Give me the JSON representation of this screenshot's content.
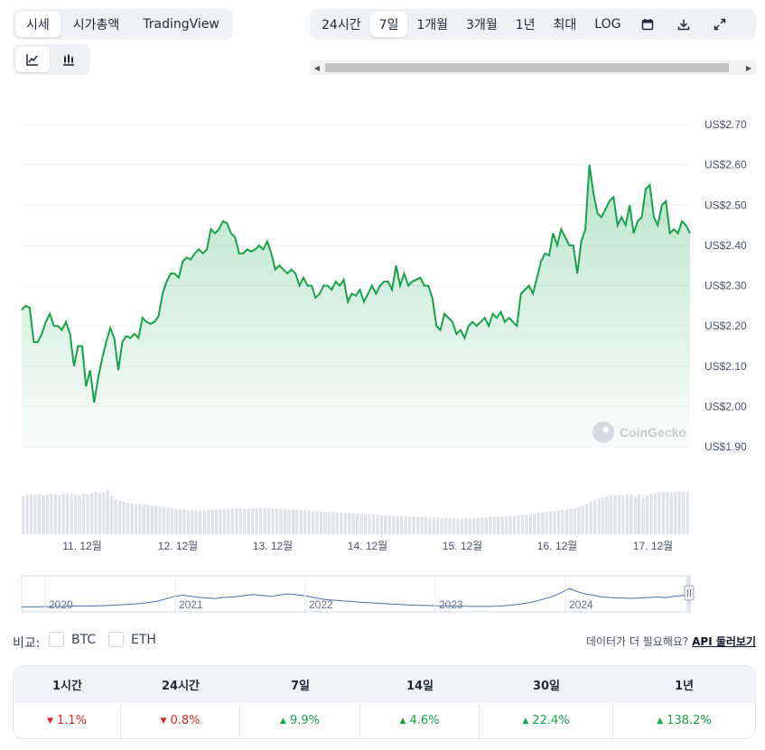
{
  "tabs": {
    "view": [
      "시세",
      "시가총액",
      "TradingView"
    ],
    "view_active": 0,
    "range": [
      "24시간",
      "7일",
      "1개월",
      "3개월",
      "1년",
      "최대",
      "LOG"
    ],
    "range_active": 1,
    "chart_type_icons": [
      "line-chart-icon",
      "candlestick-chart-icon"
    ],
    "chart_type_active": 0,
    "range_icons": [
      "calendar-icon",
      "download-icon",
      "expand-icon"
    ]
  },
  "watermark": "CoinGecko",
  "chart_data": {
    "type": "area",
    "ylim": [
      1.9,
      2.7
    ],
    "y_ticks": [
      "US$2.70",
      "US$2.60",
      "US$2.50",
      "US$2.40",
      "US$2.30",
      "US$2.20",
      "US$2.10",
      "US$2.00",
      "US$1.90"
    ],
    "x_ticks": [
      "11. 12월",
      "12. 12월",
      "13. 12월",
      "14. 12월",
      "15. 12월",
      "16. 12월",
      "17. 12월"
    ],
    "line_color": "#16a34a",
    "price": [
      2.24,
      2.25,
      2.245,
      2.16,
      2.16,
      2.18,
      2.21,
      2.23,
      2.2,
      2.2,
      2.19,
      2.21,
      2.18,
      2.1,
      2.15,
      2.15,
      2.05,
      2.09,
      2.01,
      2.07,
      2.12,
      2.16,
      2.195,
      2.17,
      2.09,
      2.16,
      2.175,
      2.17,
      2.18,
      2.17,
      2.22,
      2.21,
      2.205,
      2.21,
      2.225,
      2.28,
      2.31,
      2.33,
      2.33,
      2.32,
      2.36,
      2.37,
      2.365,
      2.38,
      2.39,
      2.38,
      2.39,
      2.44,
      2.43,
      2.44,
      2.46,
      2.455,
      2.43,
      2.42,
      2.38,
      2.38,
      2.39,
      2.385,
      2.39,
      2.4,
      2.39,
      2.41,
      2.38,
      2.34,
      2.35,
      2.34,
      2.33,
      2.34,
      2.33,
      2.3,
      2.32,
      2.3,
      2.3,
      2.27,
      2.28,
      2.3,
      2.3,
      2.29,
      2.31,
      2.3,
      2.315,
      2.26,
      2.28,
      2.275,
      2.29,
      2.26,
      2.28,
      2.3,
      2.28,
      2.3,
      2.31,
      2.31,
      2.29,
      2.35,
      2.3,
      2.33,
      2.3,
      2.31,
      2.315,
      2.32,
      2.3,
      2.3,
      2.27,
      2.2,
      2.19,
      2.23,
      2.22,
      2.21,
      2.18,
      2.19,
      2.17,
      2.2,
      2.21,
      2.2,
      2.21,
      2.22,
      2.2,
      2.23,
      2.22,
      2.235,
      2.21,
      2.22,
      2.21,
      2.2,
      2.28,
      2.29,
      2.3,
      2.28,
      2.32,
      2.36,
      2.38,
      2.375,
      2.43,
      2.4,
      2.44,
      2.42,
      2.4,
      2.4,
      2.33,
      2.41,
      2.44,
      2.6,
      2.53,
      2.48,
      2.47,
      2.49,
      2.51,
      2.52,
      2.45,
      2.47,
      2.45,
      2.5,
      2.43,
      2.46,
      2.47,
      2.54,
      2.55,
      2.47,
      2.45,
      2.5,
      2.51,
      2.43,
      2.44,
      2.43,
      2.46,
      2.45,
      2.43
    ],
    "volume": [
      0.7,
      0.72,
      0.74,
      0.73,
      0.74,
      0.73,
      0.74,
      0.76,
      0.74,
      0.73,
      0.74,
      0.75,
      0.76,
      0.74,
      0.73,
      0.75,
      0.74,
      0.76,
      0.78,
      0.76,
      0.77,
      0.82,
      0.72,
      0.65,
      0.62,
      0.6,
      0.58,
      0.57,
      0.56,
      0.56,
      0.55,
      0.54,
      0.53,
      0.52,
      0.51,
      0.5,
      0.49,
      0.48,
      0.47,
      0.46,
      0.45,
      0.44,
      0.45,
      0.44,
      0.44,
      0.45,
      0.45,
      0.46,
      0.46,
      0.47,
      0.47,
      0.47,
      0.48,
      0.48,
      0.48,
      0.47,
      0.47,
      0.48,
      0.48,
      0.49,
      0.49,
      0.49,
      0.48,
      0.48,
      0.47,
      0.47,
      0.46,
      0.46,
      0.45,
      0.45,
      0.44,
      0.44,
      0.43,
      0.43,
      0.42,
      0.42,
      0.41,
      0.41,
      0.4,
      0.4,
      0.4,
      0.39,
      0.39,
      0.38,
      0.38,
      0.37,
      0.37,
      0.36,
      0.36,
      0.35,
      0.35,
      0.35,
      0.34,
      0.34,
      0.34,
      0.33,
      0.33,
      0.33,
      0.32,
      0.32,
      0.32,
      0.31,
      0.31,
      0.31,
      0.3,
      0.3,
      0.3,
      0.29,
      0.29,
      0.29,
      0.3,
      0.3,
      0.3,
      0.31,
      0.31,
      0.31,
      0.32,
      0.32,
      0.32,
      0.33,
      0.33,
      0.34,
      0.34,
      0.35,
      0.36,
      0.36,
      0.37,
      0.38,
      0.39,
      0.4,
      0.41,
      0.42,
      0.43,
      0.44,
      0.45,
      0.46,
      0.47,
      0.48,
      0.5,
      0.52,
      0.55,
      0.6,
      0.64,
      0.66,
      0.68,
      0.7,
      0.71,
      0.72,
      0.73,
      0.72,
      0.74,
      0.73,
      0.7,
      0.74,
      0.66,
      0.72,
      0.75,
      0.76,
      0.77,
      0.78,
      0.78,
      0.77,
      0.78,
      0.79,
      0.78,
      0.78
    ]
  },
  "overview": {
    "years": [
      "2020",
      "2021",
      "2022",
      "2023",
      "2024"
    ],
    "values": [
      0.1,
      0.1,
      0.1,
      0.11,
      0.12,
      0.12,
      0.13,
      0.14,
      0.14,
      0.14,
      0.15,
      0.16,
      0.18,
      0.2,
      0.22,
      0.25,
      0.3,
      0.35,
      0.45,
      0.55,
      0.6,
      0.55,
      0.5,
      0.48,
      0.45,
      0.5,
      0.52,
      0.55,
      0.6,
      0.62,
      0.58,
      0.55,
      0.6,
      0.65,
      0.62,
      0.58,
      0.52,
      0.45,
      0.4,
      0.38,
      0.35,
      0.33,
      0.3,
      0.28,
      0.26,
      0.24,
      0.22,
      0.2,
      0.18,
      0.17,
      0.16,
      0.15,
      0.14,
      0.14,
      0.13,
      0.13,
      0.12,
      0.12,
      0.12,
      0.13,
      0.15,
      0.18,
      0.22,
      0.28,
      0.35,
      0.45,
      0.55,
      0.7,
      0.88,
      0.75,
      0.65,
      0.6,
      0.52,
      0.5,
      0.48,
      0.47,
      0.46,
      0.48,
      0.5,
      0.52,
      0.5,
      0.55,
      0.58,
      0.6
    ]
  },
  "compare": {
    "label": "비교:",
    "options": [
      "BTC",
      "ETH"
    ],
    "need_more": "데이터가 더 필요해요?",
    "api_link": "API 둘러보기"
  },
  "performance": {
    "headers": [
      "1시간",
      "24시간",
      "7일",
      "14일",
      "30일",
      "1년"
    ],
    "values": [
      "1.1%",
      "0.8%",
      "9.9%",
      "4.6%",
      "22.4%",
      "138.2%"
    ],
    "directions": [
      "down",
      "down",
      "up",
      "up",
      "up",
      "up"
    ]
  }
}
